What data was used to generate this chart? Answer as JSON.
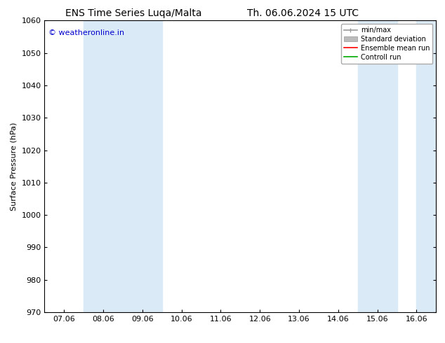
{
  "title_left": "ENS Time Series Luqa/Malta",
  "title_right": "Th. 06.06.2024 15 UTC",
  "ylabel": "Surface Pressure (hPa)",
  "ylim": [
    970,
    1060
  ],
  "yticks": [
    970,
    980,
    990,
    1000,
    1010,
    1020,
    1030,
    1040,
    1050,
    1060
  ],
  "x_labels": [
    "07.06",
    "08.06",
    "09.06",
    "10.06",
    "11.06",
    "12.06",
    "13.06",
    "14.06",
    "15.06",
    "16.06"
  ],
  "x_positions": [
    0,
    1,
    2,
    3,
    4,
    5,
    6,
    7,
    8,
    9
  ],
  "xlim": [
    -0.5,
    9.5
  ],
  "shaded_bands": [
    {
      "x_start": 0.5,
      "x_end": 2.5,
      "color": "#daeaf7"
    },
    {
      "x_start": 7.5,
      "x_end": 8.5,
      "color": "#daeaf7"
    },
    {
      "x_start": 9.0,
      "x_end": 9.5,
      "color": "#daeaf7"
    }
  ],
  "watermark_text": "© weatheronline.in",
  "watermark_color": "#0000cc",
  "watermark_fontsize": 8,
  "background_color": "#ffffff",
  "plot_bg_color": "#ffffff",
  "title_fontsize": 10,
  "axis_label_fontsize": 8,
  "tick_fontsize": 8,
  "legend_fontsize": 7,
  "minmax_color": "#999999",
  "std_color": "#bbbbbb",
  "mean_color": "#ff0000",
  "ctrl_color": "#00aa00"
}
